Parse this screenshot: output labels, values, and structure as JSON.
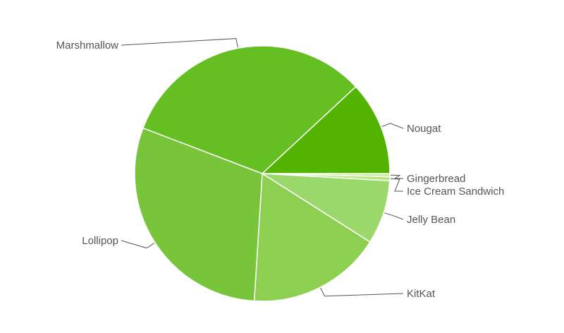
{
  "chart_data": {
    "type": "pie",
    "title": "",
    "slices": [
      {
        "label": "Gingerbread",
        "value": 0.4,
        "color": "#c6f190"
      },
      {
        "label": "Ice Cream Sandwich",
        "value": 0.5,
        "color": "#b5e87c"
      },
      {
        "label": "Jelly Bean",
        "value": 8.1,
        "color": "#9bd86c"
      },
      {
        "label": "KitKat",
        "value": 17.0,
        "color": "#8ccf51"
      },
      {
        "label": "Lollipop",
        "value": 29.8,
        "color": "#78c43b"
      },
      {
        "label": "Marshmallow",
        "value": 32.3,
        "color": "#66bf22"
      },
      {
        "label": "Nougat",
        "value": 11.9,
        "color": "#52b400"
      }
    ],
    "start_angle_deg": 0,
    "direction": "clockwise",
    "slice_border_color": "#ffffff",
    "label_color": "#555555"
  }
}
